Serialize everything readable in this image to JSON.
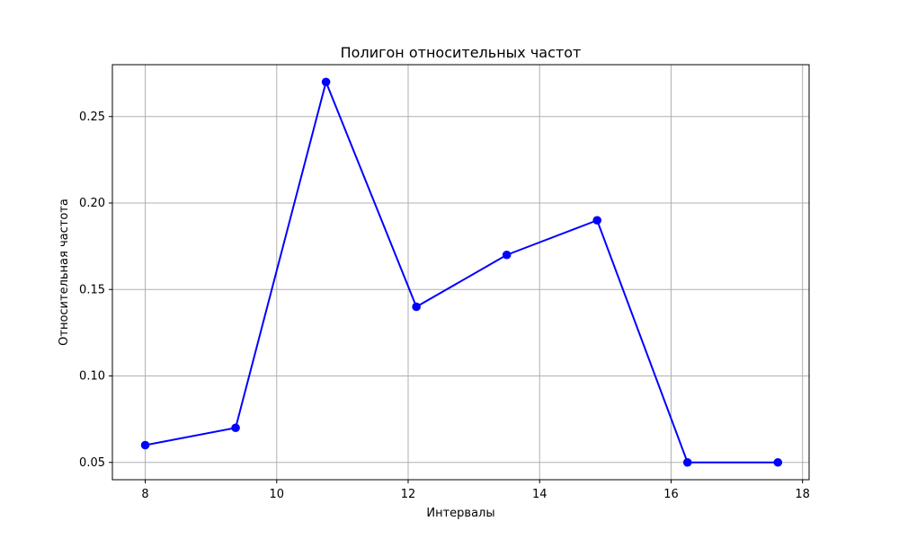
{
  "chart_data": {
    "type": "line",
    "title": "Полигон относительных частот",
    "xlabel": "Интервалы",
    "ylabel": "Относительная частота",
    "x": [
      8.0,
      9.375,
      10.75,
      12.125,
      13.5,
      14.875,
      16.25,
      17.625
    ],
    "series": [
      {
        "values": [
          0.06,
          0.07,
          0.27,
          0.14,
          0.17,
          0.19,
          0.05,
          0.05
        ]
      }
    ],
    "xlim": [
      7.5,
      18.1
    ],
    "ylim": [
      0.04,
      0.28
    ],
    "xticks": [
      8,
      10,
      12,
      14,
      16,
      18
    ],
    "yticks": [
      0.05,
      0.1,
      0.15,
      0.2,
      0.25
    ],
    "xtick_labels": [
      "8",
      "10",
      "12",
      "14",
      "16",
      "18"
    ],
    "ytick_labels": [
      "0.05",
      "0.10",
      "0.15",
      "0.20",
      "0.25"
    ],
    "grid": true,
    "line_color": "#0000ff",
    "marker": "circle"
  }
}
